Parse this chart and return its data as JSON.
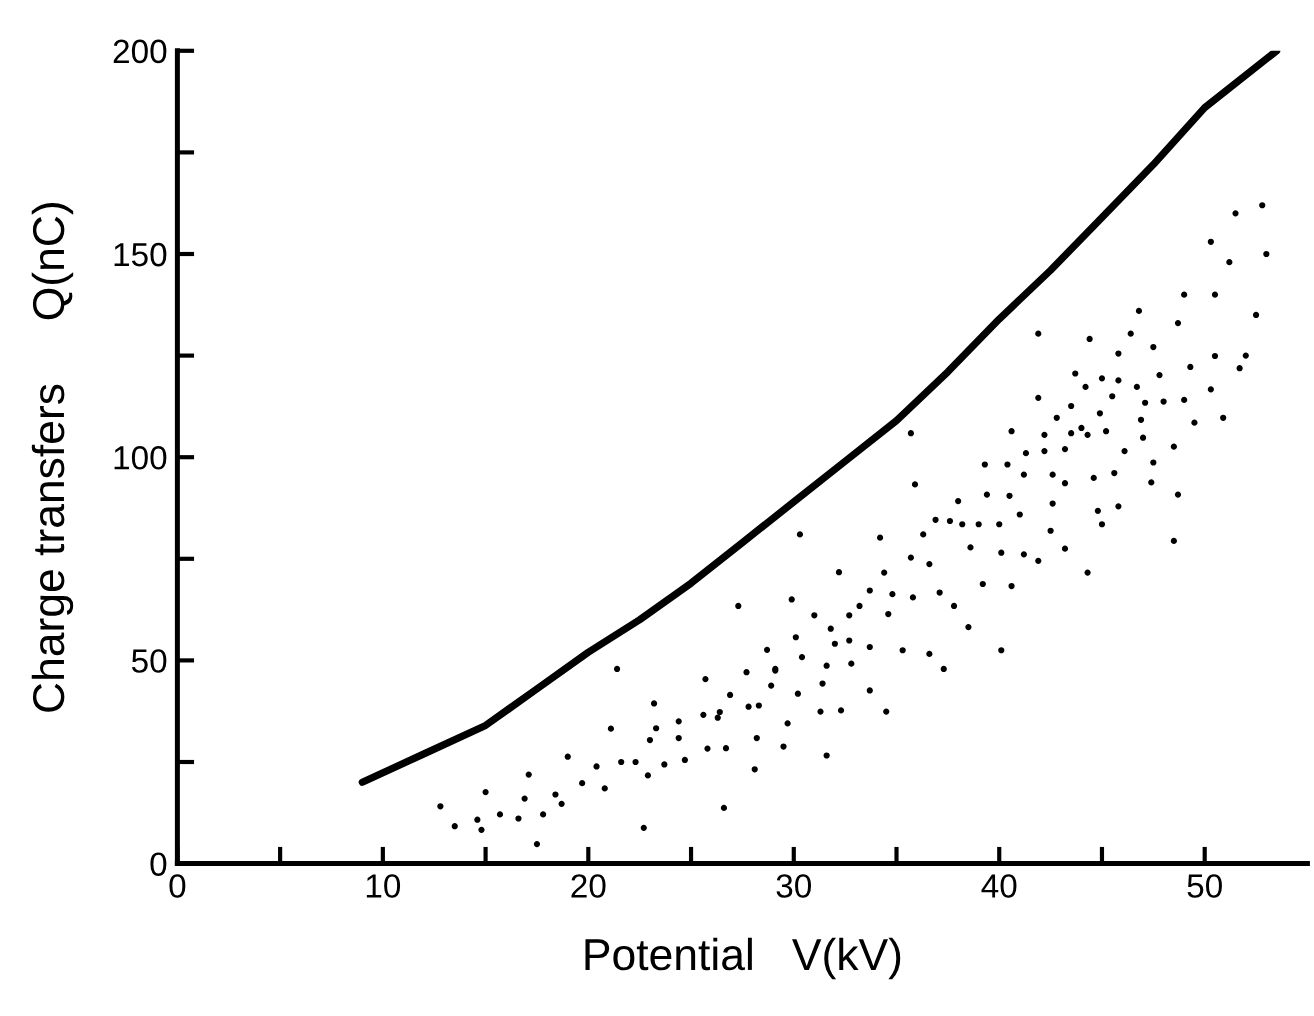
{
  "chart_data": {
    "type": "scatter",
    "xlabel": "Potential   V(kV)",
    "ylabel": "Charge transfers     Q(nC)",
    "xlim": [
      0,
      55
    ],
    "ylim": [
      0,
      200
    ],
    "xticks": [
      0,
      {
        "value": 5,
        "label": null
      },
      10,
      {
        "value": 15,
        "label": null
      },
      20,
      {
        "value": 25,
        "label": null
      },
      30,
      {
        "value": 35,
        "label": null
      },
      40,
      {
        "value": 45,
        "label": null
      },
      50
    ],
    "yticks": [
      0,
      {
        "value": 25,
        "label": null
      },
      50,
      {
        "value": 75,
        "label": null
      },
      100,
      {
        "value": 125,
        "label": null
      },
      150,
      {
        "value": 175,
        "label": null
      },
      200
    ],
    "grid": false,
    "legend": false,
    "series": [
      {
        "type": "line",
        "color": "#000000",
        "marker": "none",
        "line_style": "solid",
        "x": [
          9,
          12,
          15,
          17.5,
          20,
          22.5,
          25,
          27.5,
          30,
          32.5,
          35,
          37.5,
          40,
          42.5,
          45,
          47.5,
          50,
          53.5
        ],
        "values": [
          20,
          27,
          34,
          43,
          52,
          60,
          69,
          79,
          89,
          99,
          109,
          121,
          134,
          146,
          159,
          172,
          186,
          200
        ]
      },
      {
        "color": "#000000",
        "marker": "circle",
        "x": [
          12.8,
          13.5,
          15.0,
          14.6,
          14.8,
          15.7,
          16.6,
          17.1,
          16.9,
          17.8,
          18.4,
          18.7,
          17.5,
          19.0,
          19.7,
          20.4,
          20.8,
          21.1,
          21.4,
          21.6,
          22.3,
          22.7,
          22.9,
          23.0,
          23.2,
          23.3,
          23.7,
          24.4,
          24.4,
          24.7,
          25.6,
          25.7,
          25.8,
          26.3,
          26.4,
          26.6,
          26.7,
          26.9,
          27.3,
          27.7,
          27.8,
          28.1,
          28.2,
          28.3,
          28.7,
          28.9,
          29.1,
          29.5,
          29.7,
          29.9,
          30.3,
          32.2,
          31.0,
          31.8,
          32.7,
          33.2,
          33.7,
          34.2,
          34.4,
          34.6,
          34.8,
          35.8,
          35.7,
          35.9,
          35.7,
          36.3,
          36.6,
          36.9,
          37.1,
          37.6,
          37.8,
          38.0,
          38.2,
          38.5,
          38.6,
          39.0,
          39.2,
          39.3,
          39.4,
          40.0,
          40.1,
          40.4,
          40.5,
          40.6,
          40.6,
          41.0,
          41.2,
          41.2,
          41.3,
          41.9,
          41.9,
          42.2,
          42.2,
          42.5,
          42.6,
          42.6,
          42.8,
          43.2,
          43.2,
          43.2,
          43.5,
          43.5,
          43.7,
          44.0,
          44.2,
          44.3,
          44.3,
          44.6,
          44.8,
          44.9,
          45.0,
          45.0,
          45.2,
          45.5,
          45.6,
          45.8,
          45.8,
          45.8,
          46.1,
          46.7,
          46.9,
          47.0,
          47.1,
          47.4,
          47.5,
          47.5,
          47.8,
          48.0,
          48.5,
          48.5,
          48.7,
          49.0,
          49.3,
          49.5,
          50.3,
          50.5,
          50.9,
          51.7,
          41.9,
          44.4,
          46.4,
          50.3,
          51.5,
          52.8,
          51.2,
          49.0,
          52.0,
          48.7,
          50.5,
          53.0,
          46.8,
          52.5,
          31.6,
          34.5,
          33.7,
          32.3,
          31.3,
          30.2,
          31.4,
          31.6,
          30.4,
          30.1,
          29.1,
          37.3,
          40.1,
          36.6,
          35.3,
          32.8,
          33.7,
          32.7,
          32.0
        ],
        "values": [
          14.1,
          9.2,
          17.6,
          10.8,
          8.3,
          12.1,
          11.1,
          21.9,
          16.0,
          12.1,
          17.0,
          14.7,
          4.8,
          26.3,
          19.8,
          23.9,
          18.5,
          33.2,
          47.9,
          25.0,
          25.0,
          8.8,
          21.7,
          30.4,
          39.4,
          33.3,
          24.4,
          35.0,
          30.9,
          25.5,
          36.6,
          45.4,
          28.3,
          35.9,
          37.3,
          13.7,
          28.4,
          41.5,
          63.4,
          47.1,
          38.6,
          23.2,
          30.9,
          38.9,
          52.6,
          43.8,
          47.5,
          28.8,
          34.5,
          65.0,
          81.0,
          71.7,
          61.1,
          57.8,
          61.1,
          63.4,
          67.2,
          80.2,
          71.6,
          61.4,
          66.3,
          65.5,
          75.3,
          93.3,
          105.9,
          81.0,
          73.7,
          84.6,
          66.7,
          84.3,
          63.4,
          89.2,
          83.5,
          58.2,
          77.8,
          83.5,
          68.8,
          98.2,
          90.8,
          83.5,
          76.5,
          98.2,
          90.5,
          68.3,
          106.4,
          85.9,
          95.7,
          76.1,
          101.0,
          74.5,
          114.6,
          101.5,
          105.5,
          81.9,
          88.6,
          95.7,
          109.7,
          77.5,
          93.6,
          102.0,
          105.9,
          112.6,
          120.6,
          107.2,
          117.3,
          105.5,
          71.6,
          94.9,
          86.8,
          110.8,
          119.4,
          83.5,
          106.4,
          115.0,
          96.1,
          87.9,
          118.9,
          125.5,
          101.5,
          117.3,
          109.2,
          104.8,
          113.4,
          93.8,
          98.7,
          127.1,
          120.2,
          113.7,
          102.6,
          79.4,
          90.8,
          114.1,
          122.2,
          108.5,
          116.7,
          124.9,
          109.7,
          121.9,
          130.4,
          129.1,
          130.4,
          153,
          160,
          162,
          148,
          140,
          125,
          133,
          140,
          150,
          136,
          135,
          26.6,
          37.4,
          42.6,
          37.7,
          37.4,
          41.8,
          44.3,
          48.7,
          50.8,
          55.7,
          47.9,
          47.9,
          52.5,
          51.6,
          52.5,
          49.2,
          53.3,
          54.9,
          54.1
        ]
      }
    ]
  }
}
